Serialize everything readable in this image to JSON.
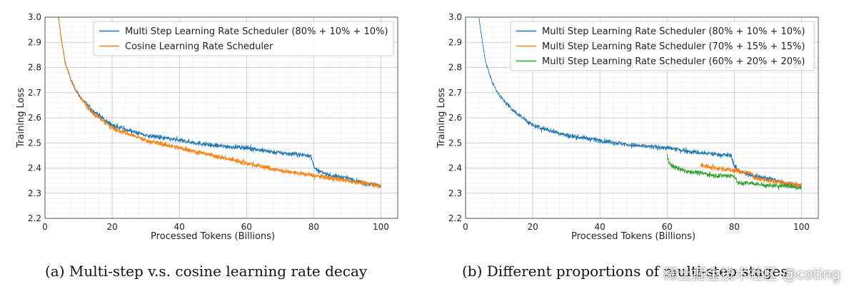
{
  "chart_data": [
    {
      "type": "line",
      "title": "",
      "xlabel": "Processed Tokens (Billions)",
      "ylabel": "Training Loss",
      "xlim": [
        0,
        105
      ],
      "ylim": [
        2.2,
        3.0
      ],
      "xticks": [
        0,
        20,
        40,
        60,
        80,
        100
      ],
      "yticks": [
        2.2,
        2.3,
        2.4,
        2.5,
        2.6,
        2.7,
        2.8,
        2.9,
        3.0
      ],
      "xtick_labels": [
        "0",
        "20",
        "40",
        "60",
        "80",
        "100"
      ],
      "ytick_labels": [
        "2.2",
        "2.3",
        "2.4",
        "2.5",
        "2.6",
        "2.7",
        "2.8",
        "2.9",
        "3.0"
      ],
      "grid": true,
      "legend_position": "top-right",
      "series": [
        {
          "name": "Multi Step Learning Rate Scheduler (80% + 10% + 10%)",
          "color": "#1f77b4",
          "x": [
            4,
            5,
            6,
            8,
            10,
            14,
            20,
            30,
            40,
            50,
            60,
            70,
            79,
            80,
            81,
            85,
            90,
            95,
            100
          ],
          "y": [
            3.0,
            2.9,
            2.82,
            2.74,
            2.69,
            2.63,
            2.57,
            2.53,
            2.51,
            2.49,
            2.48,
            2.46,
            2.45,
            2.41,
            2.39,
            2.37,
            2.36,
            2.34,
            2.33
          ]
        },
        {
          "name": "Cosine Learning Rate Scheduler",
          "color": "#ff7f0e",
          "x": [
            4,
            5,
            6,
            8,
            10,
            14,
            20,
            30,
            40,
            50,
            60,
            70,
            80,
            90,
            100
          ],
          "y": [
            3.0,
            2.9,
            2.82,
            2.74,
            2.69,
            2.62,
            2.56,
            2.51,
            2.48,
            2.45,
            2.42,
            2.39,
            2.37,
            2.35,
            2.33
          ]
        }
      ]
    },
    {
      "type": "line",
      "title": "",
      "xlabel": "Processed Tokens (Billions)",
      "ylabel": "Training Loss",
      "xlim": [
        0,
        105
      ],
      "ylim": [
        2.2,
        3.0
      ],
      "xticks": [
        0,
        20,
        40,
        60,
        80,
        100
      ],
      "yticks": [
        2.2,
        2.3,
        2.4,
        2.5,
        2.6,
        2.7,
        2.8,
        2.9,
        3.0
      ],
      "xtick_labels": [
        "0",
        "20",
        "40",
        "60",
        "80",
        "100"
      ],
      "ytick_labels": [
        "2.2",
        "2.3",
        "2.4",
        "2.5",
        "2.6",
        "2.7",
        "2.8",
        "2.9",
        "3.0"
      ],
      "grid": true,
      "legend_position": "top-right",
      "series": [
        {
          "name": "Multi Step Learning Rate Scheduler (80% + 10% + 10%)",
          "color": "#1f77b4",
          "x": [
            4,
            5,
            6,
            8,
            10,
            14,
            20,
            30,
            40,
            50,
            60,
            70,
            79,
            80,
            81,
            85,
            90,
            95,
            100
          ],
          "y": [
            3.0,
            2.9,
            2.82,
            2.74,
            2.69,
            2.63,
            2.57,
            2.53,
            2.51,
            2.49,
            2.48,
            2.46,
            2.45,
            2.41,
            2.39,
            2.37,
            2.36,
            2.34,
            2.33
          ]
        },
        {
          "name": "Multi Step Learning Rate Scheduler (70% + 15% + 15%)",
          "color": "#ff7f0e",
          "x": [
            70,
            75,
            80,
            85,
            86,
            90,
            95,
            100
          ],
          "y": [
            2.41,
            2.4,
            2.39,
            2.38,
            2.36,
            2.35,
            2.34,
            2.33
          ]
        },
        {
          "name": "Multi Step Learning Rate Scheduler (60% + 20% + 20%)",
          "color": "#2ca02c",
          "x": [
            60,
            61,
            65,
            70,
            75,
            80,
            81,
            85,
            90,
            95,
            100
          ],
          "y": [
            2.45,
            2.41,
            2.39,
            2.38,
            2.37,
            2.37,
            2.34,
            2.34,
            2.33,
            2.33,
            2.32
          ]
        }
      ]
    }
  ],
  "captions": [
    "(a) Multi-step v.s. cosine learning rate decay",
    "(b) Different proportions of multi-step stages"
  ],
  "watermark": "稀土掘金技术社区 @coting"
}
